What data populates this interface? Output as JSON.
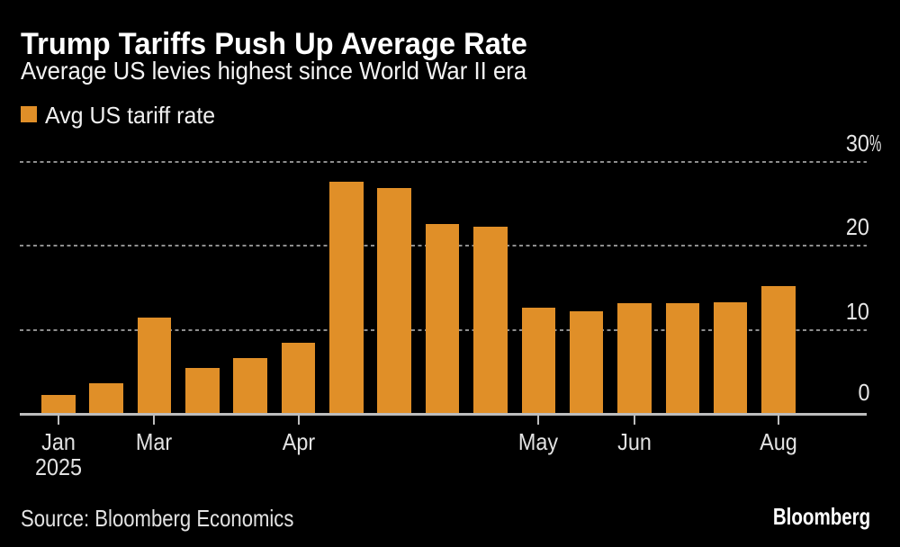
{
  "title": "Trump Tariffs Push Up Average Rate",
  "subtitle": "Average US levies highest since World War II era",
  "legend": {
    "label": "Avg US tariff rate"
  },
  "source": "Source: Bloomberg Economics",
  "logo": "Bloomberg",
  "colors": {
    "background": "#000000",
    "bar": "#E08F28",
    "grid": "#8E8E8E",
    "axis": "#BDBDBD",
    "title_text": "#FFFFFF",
    "muted_text": "#E2E2E2"
  },
  "chart_data": {
    "type": "bar",
    "title": "Trump Tariffs Push Up Average Rate",
    "subtitle": "Average US levies highest since World War II era",
    "series_name": "Avg US tariff rate",
    "ylabel": "",
    "xlabel": "",
    "ylim": [
      0,
      30
    ],
    "grid": "horizontal dashed",
    "legend_position": "top-left",
    "values": [
      2.3,
      3.6,
      11.5,
      5.5,
      6.6,
      8.5,
      27.6,
      26.9,
      22.6,
      22.3,
      12.6,
      12.2,
      13.2,
      13.2,
      13.3,
      15.2
    ],
    "x_ticks": [
      {
        "index": 0,
        "label": "Jan",
        "sublabel": "2025"
      },
      {
        "index": 2,
        "label": "Mar"
      },
      {
        "index": 5,
        "label": "Apr"
      },
      {
        "index": 10,
        "label": "May"
      },
      {
        "index": 12,
        "label": "Jun"
      },
      {
        "index": 15,
        "label": "Aug"
      }
    ],
    "y_ticks": [
      {
        "value": 30,
        "label": "30",
        "suffix": "%"
      },
      {
        "value": 20,
        "label": "20"
      },
      {
        "value": 10,
        "label": "10"
      },
      {
        "value": 0,
        "label": "0"
      }
    ]
  }
}
